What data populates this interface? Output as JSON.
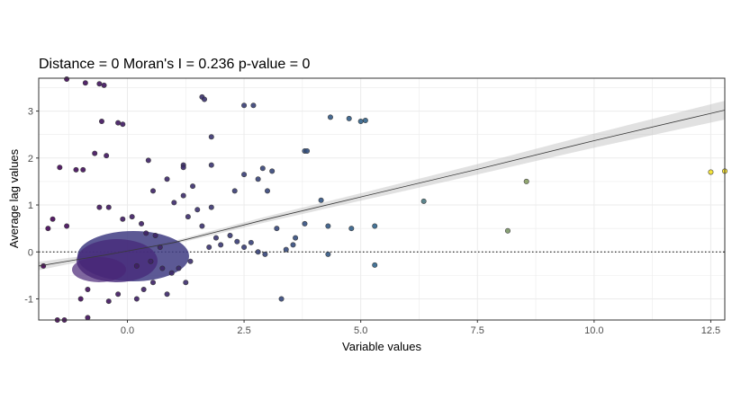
{
  "chart_data": {
    "type": "scatter",
    "title": "Distance = 0   Moran's I = 0.236   p-value = 0",
    "xlabel": "Variable values",
    "ylabel": "Average lag values",
    "xlim": [
      -1.9,
      12.8
    ],
    "ylim": [
      -1.45,
      3.7
    ],
    "x_ticks": [
      0,
      2.5,
      5,
      7.5,
      10,
      12.5
    ],
    "x_tick_labels": [
      "0.0",
      "2.5",
      "5.0",
      "7.5",
      "10.0",
      "12.5"
    ],
    "y_ticks": [
      -1,
      0,
      1,
      2,
      3
    ],
    "y_tick_labels": [
      "-1",
      "0",
      "1",
      "2",
      "3"
    ],
    "grid": true,
    "legend": "none",
    "reference_line": {
      "y": 0,
      "style": "dotted"
    },
    "trend": {
      "line": [
        [
          -1.9,
          -0.3
        ],
        [
          -1.0,
          -0.15
        ],
        [
          -0.5,
          -0.07
        ],
        [
          0.0,
          0.02
        ],
        [
          1.0,
          0.2
        ],
        [
          2.0,
          0.45
        ],
        [
          3.0,
          0.7
        ],
        [
          5.0,
          1.17
        ],
        [
          7.5,
          1.76
        ],
        [
          10.0,
          2.37
        ],
        [
          12.8,
          3.02
        ]
      ],
      "band_halfwidth": [
        [
          -1.9,
          0.09
        ],
        [
          0.0,
          0.02
        ],
        [
          2.0,
          0.05
        ],
        [
          5.0,
          0.08
        ],
        [
          7.5,
          0.11
        ],
        [
          10.0,
          0.15
        ],
        [
          12.8,
          0.2
        ]
      ]
    },
    "color_scale": {
      "low": "#440154",
      "mid": "#31688e",
      "high": "#fde725",
      "domain": [
        -1.9,
        12.8
      ]
    },
    "points": [
      [
        -1.3,
        3.68
      ],
      [
        -0.9,
        3.6
      ],
      [
        -0.6,
        3.58
      ],
      [
        -0.5,
        3.55
      ],
      [
        1.6,
        3.3
      ],
      [
        1.65,
        3.25
      ],
      [
        2.5,
        3.12
      ],
      [
        2.7,
        3.12
      ],
      [
        4.35,
        2.87
      ],
      [
        4.75,
        2.84
      ],
      [
        5.0,
        2.78
      ],
      [
        5.1,
        2.8
      ],
      [
        -0.55,
        2.78
      ],
      [
        -0.2,
        2.75
      ],
      [
        -0.1,
        2.72
      ],
      [
        1.8,
        2.45
      ],
      [
        3.8,
        2.15
      ],
      [
        3.85,
        2.15
      ],
      [
        -0.7,
        2.1
      ],
      [
        -0.45,
        2.05
      ],
      [
        -1.45,
        1.8
      ],
      [
        -1.1,
        1.75
      ],
      [
        -0.95,
        1.75
      ],
      [
        0.45,
        1.95
      ],
      [
        1.2,
        1.85
      ],
      [
        1.2,
        1.8
      ],
      [
        1.8,
        1.85
      ],
      [
        2.5,
        1.65
      ],
      [
        2.9,
        1.78
      ],
      [
        3.1,
        1.72
      ],
      [
        2.8,
        1.55
      ],
      [
        3.0,
        1.3
      ],
      [
        2.3,
        1.3
      ],
      [
        6.35,
        1.08
      ],
      [
        8.55,
        1.5
      ],
      [
        8.15,
        0.45
      ],
      [
        12.5,
        1.7
      ],
      [
        12.8,
        1.72
      ],
      [
        4.15,
        1.1
      ],
      [
        4.3,
        0.55
      ],
      [
        4.8,
        0.5
      ],
      [
        5.3,
        0.55
      ],
      [
        4.3,
        -0.05
      ],
      [
        5.3,
        -0.28
      ],
      [
        3.6,
        0.3
      ],
      [
        3.55,
        0.15
      ],
      [
        3.4,
        0.05
      ],
      [
        3.2,
        0.5
      ],
      [
        3.8,
        0.6
      ],
      [
        2.65,
        0.2
      ],
      [
        2.5,
        0.1
      ],
      [
        2.8,
        0.0
      ],
      [
        2.95,
        -0.05
      ],
      [
        2.2,
        0.35
      ],
      [
        2.35,
        0.22
      ],
      [
        1.9,
        0.3
      ],
      [
        2.0,
        0.15
      ],
      [
        3.3,
        -1.0
      ],
      [
        1.8,
        0.95
      ],
      [
        1.5,
        0.9
      ],
      [
        1.2,
        1.2
      ],
      [
        1.4,
        1.4
      ],
      [
        0.85,
        1.55
      ],
      [
        0.55,
        1.3
      ],
      [
        1.0,
        1.05
      ],
      [
        1.3,
        0.75
      ],
      [
        1.6,
        0.55
      ],
      [
        1.75,
        0.1
      ],
      [
        1.35,
        -0.2
      ],
      [
        1.1,
        -0.35
      ],
      [
        0.95,
        -0.45
      ],
      [
        0.75,
        -0.35
      ],
      [
        0.55,
        -0.65
      ],
      [
        1.25,
        -0.65
      ],
      [
        0.85,
        -0.9
      ],
      [
        0.35,
        -0.8
      ],
      [
        0.2,
        -1.0
      ],
      [
        -0.2,
        -0.9
      ],
      [
        -0.4,
        -1.05
      ],
      [
        -0.85,
        -0.8
      ],
      [
        -1.0,
        -1.0
      ],
      [
        -1.5,
        -1.45
      ],
      [
        -1.35,
        -1.45
      ],
      [
        -0.85,
        -1.4
      ],
      [
        -1.6,
        0.7
      ],
      [
        -1.3,
        0.55
      ],
      [
        -1.7,
        0.5
      ],
      [
        -1.8,
        -0.3
      ],
      [
        -0.6,
        0.95
      ],
      [
        -0.4,
        0.95
      ],
      [
        0.1,
        0.75
      ],
      [
        0.3,
        0.6
      ],
      [
        -0.1,
        0.7
      ],
      [
        0.6,
        0.35
      ],
      [
        0.7,
        0.1
      ],
      [
        0.5,
        -0.2
      ],
      [
        0.4,
        0.4
      ],
      [
        0.2,
        -0.3
      ]
    ]
  }
}
